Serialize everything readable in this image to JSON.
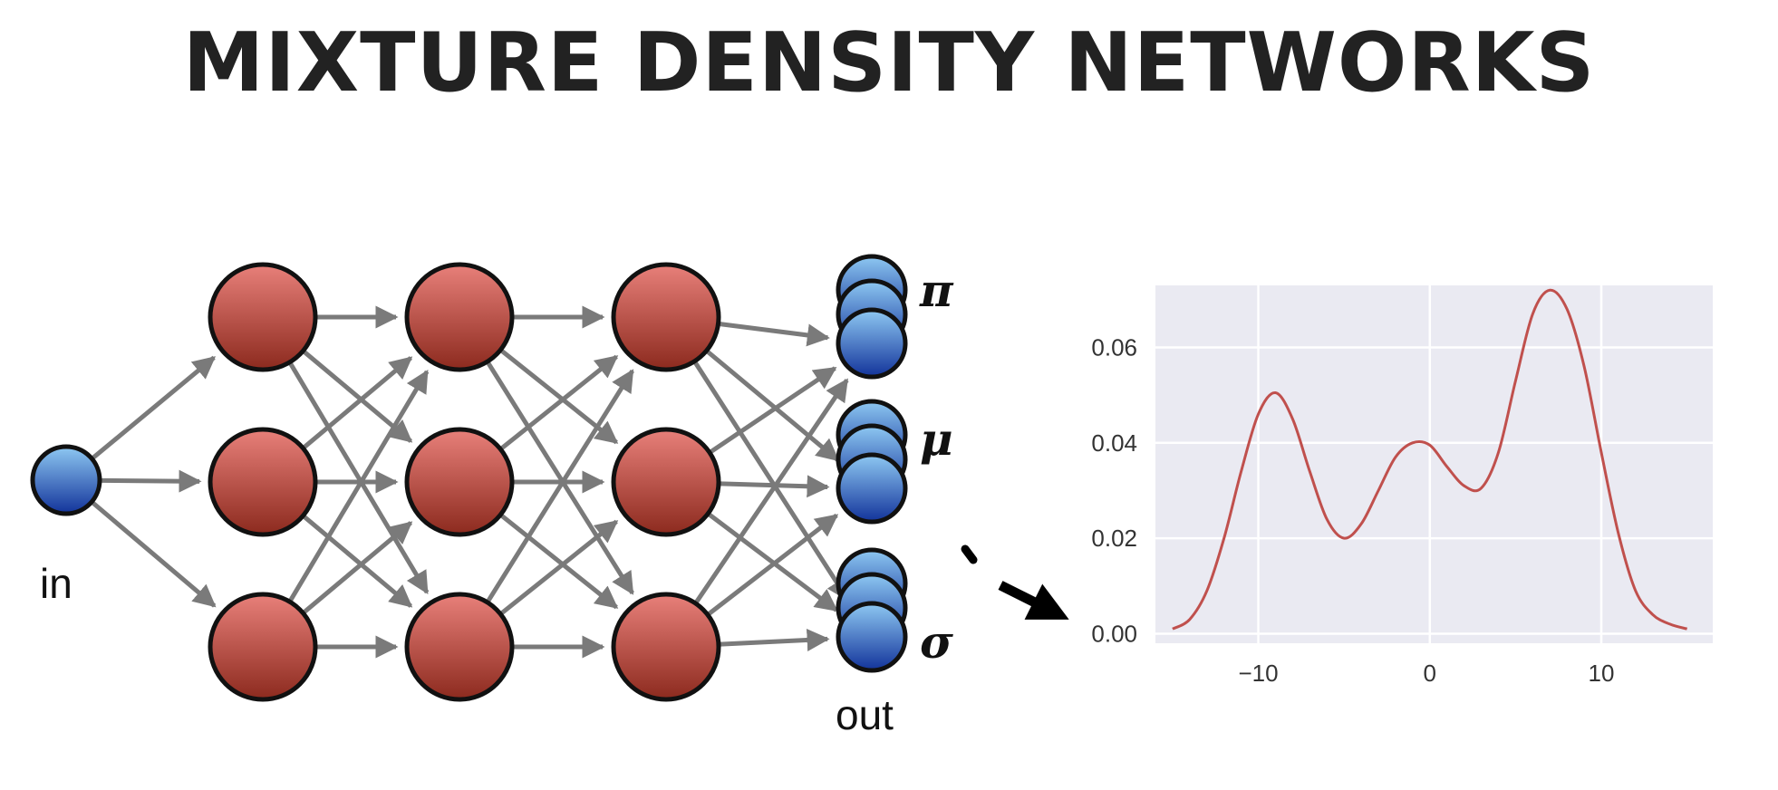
{
  "title": "MIXTURE DENSITY NETWORKS",
  "network": {
    "input_label": "in",
    "output_label": "out",
    "hidden_layers": 3,
    "nodes_per_hidden_layer": 3,
    "output_groups": [
      {
        "symbol": "π",
        "name": "pi"
      },
      {
        "symbol": "μ",
        "name": "mu"
      },
      {
        "symbol": "σ",
        "name": "sigma"
      }
    ],
    "colors": {
      "hidden_node_top": "#e8807a",
      "hidden_node_bottom": "#8c2a1e",
      "io_node_top": "#8ec8f2",
      "io_node_bottom": "#12339a",
      "edge": "#7a7a7a",
      "node_stroke": "#111111"
    }
  },
  "chart_data": {
    "type": "line",
    "title": "",
    "xlabel": "",
    "ylabel": "",
    "xlim": [
      -16,
      16.5
    ],
    "ylim": [
      -0.002,
      0.073
    ],
    "xticks": [
      -10,
      0,
      10
    ],
    "xtick_labels": [
      "−10",
      "0",
      "10"
    ],
    "yticks": [
      0.0,
      0.02,
      0.04,
      0.06
    ],
    "ytick_labels": [
      "0.00",
      "0.02",
      "0.04",
      "0.06"
    ],
    "grid": true,
    "background_color": "#eaeaf2",
    "line_color": "#c0504d",
    "series": [
      {
        "x": [
          -15,
          -14,
          -13,
          -12,
          -11,
          -10,
          -9,
          -8,
          -7,
          -6,
          -5,
          -4,
          -3,
          -2,
          -1,
          0,
          1,
          2,
          3,
          4,
          5,
          6,
          7,
          8,
          9,
          10,
          11,
          12,
          13,
          14,
          15
        ],
        "values": [
          0.001,
          0.003,
          0.009,
          0.02,
          0.034,
          0.046,
          0.0505,
          0.045,
          0.034,
          0.024,
          0.02,
          0.023,
          0.03,
          0.037,
          0.04,
          0.0395,
          0.035,
          0.031,
          0.0305,
          0.038,
          0.053,
          0.067,
          0.072,
          0.068,
          0.056,
          0.038,
          0.021,
          0.009,
          0.004,
          0.002,
          0.001
        ]
      }
    ]
  }
}
